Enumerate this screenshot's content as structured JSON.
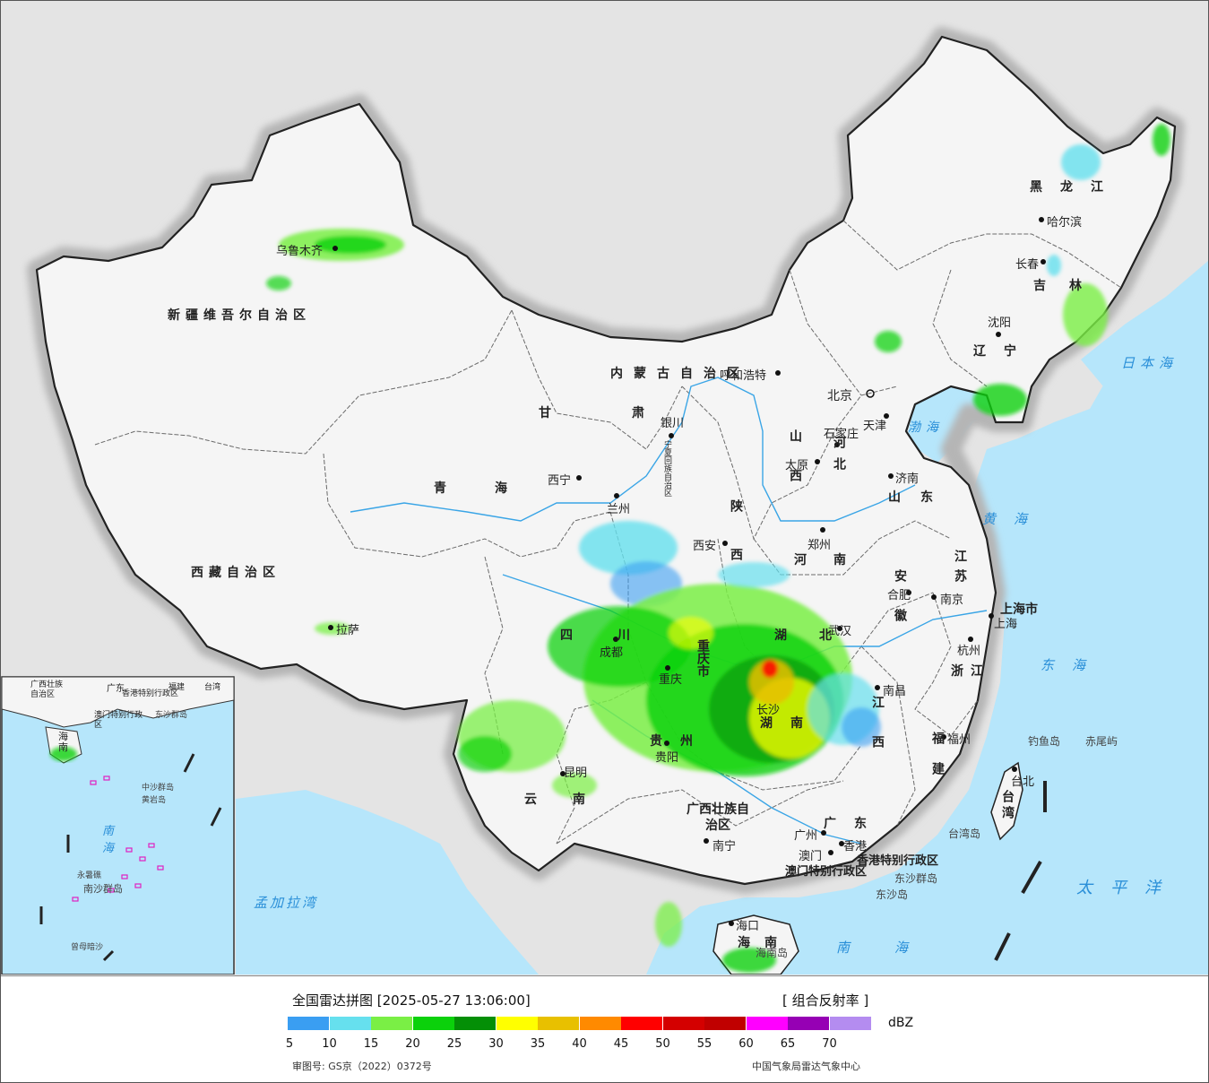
{
  "map": {
    "title": "全国雷达拼图 [2025-05-27 13:06:00]",
    "product": "[ 组合反射率 ]",
    "unit": "dBZ",
    "approval": "审图号: GS京（2022）0372号",
    "agency": "中国气象局雷达气象中心",
    "colors": {
      "land": "#f4f4f4",
      "outside": "#e4e4e4",
      "sea": "#b6e6fb",
      "border": "#222222",
      "province_border": "#666666",
      "river": "#3aa5e6"
    },
    "legend": {
      "ticks": [
        "5",
        "10",
        "15",
        "20",
        "25",
        "30",
        "35",
        "40",
        "45",
        "50",
        "55",
        "60",
        "65",
        "70"
      ],
      "colors": [
        "#3a9ef2",
        "#66e0ee",
        "#7aef45",
        "#0bd10b",
        "#048f06",
        "#ffff00",
        "#e8c000",
        "#ff8a00",
        "#ff0000",
        "#d40000",
        "#c00000",
        "#ff00ff",
        "#9600b4",
        "#b48cf0"
      ]
    },
    "provinces": [
      "新疆维吾尔自治区",
      "西藏自治区",
      "青海",
      "甘肃",
      "内蒙古自治区",
      "黑龙江",
      "吉林",
      "辽宁",
      "河北",
      "山西",
      "陕西",
      "宁夏回族自治区",
      "四川",
      "重庆市",
      "贵州",
      "云南",
      "广西壮族自治区",
      "广东",
      "湖南",
      "湖北",
      "河南",
      "山东",
      "江苏",
      "安徽",
      "浙江",
      "江西",
      "福建",
      "台湾",
      "海南",
      "上海市"
    ],
    "cities": [
      "乌鲁木齐",
      "拉萨",
      "西宁",
      "兰州",
      "银川",
      "呼和浩特",
      "北京",
      "天津",
      "石家庄",
      "太原",
      "济南",
      "郑州",
      "西安",
      "成都",
      "重庆",
      "贵阳",
      "昆明",
      "南宁",
      "广州",
      "香港",
      "澳门",
      "长沙",
      "武汉",
      "南昌",
      "福州",
      "台北",
      "杭州",
      "合肥",
      "南京",
      "上海",
      "沈阳",
      "长春",
      "哈尔滨",
      "海口"
    ],
    "seas": [
      "渤海",
      "黄海",
      "东海",
      "南海",
      "日本海",
      "太平洋",
      "孟加拉湾"
    ],
    "islands": [
      "钓鱼岛",
      "赤尾屿",
      "东沙群岛",
      "海南岛",
      "台湾岛",
      "东沙岛"
    ],
    "sar": [
      "香港特别行政区",
      "澳门特别行政区"
    ],
    "inset": {
      "places": [
        "广西壮族自治区",
        "广东",
        "福建",
        "台湾",
        "海南",
        "澳门特别行政区",
        "香港特别行政区",
        "东沙群岛",
        "中沙群岛",
        "黄岩岛",
        "永暑礁",
        "南沙群岛",
        "曾母暗沙"
      ],
      "sea": "南海"
    }
  }
}
